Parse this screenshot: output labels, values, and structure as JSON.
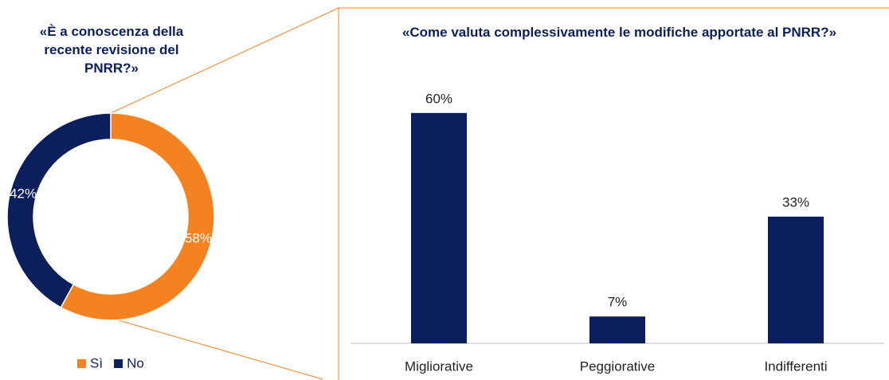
{
  "chart_data": [
    {
      "type": "donut",
      "title": "«È a conoscenza della recente revisione del PNRR?»",
      "categories": [
        "Sì",
        "No"
      ],
      "values": [
        58,
        42
      ],
      "value_labels": [
        "58%",
        "42%"
      ],
      "colors": [
        "#f58220",
        "#0b1f5c"
      ],
      "legend": "bottom"
    },
    {
      "type": "bar",
      "title": "«Come valuta complessivamente le modifiche apportate al PNRR?»",
      "categories": [
        "Migliorative",
        "Peggiorative",
        "Indifferenti"
      ],
      "values": [
        60,
        7,
        33
      ],
      "value_labels": [
        "60%",
        "7%",
        "33%"
      ],
      "color": "#0b1f5c"
    }
  ]
}
